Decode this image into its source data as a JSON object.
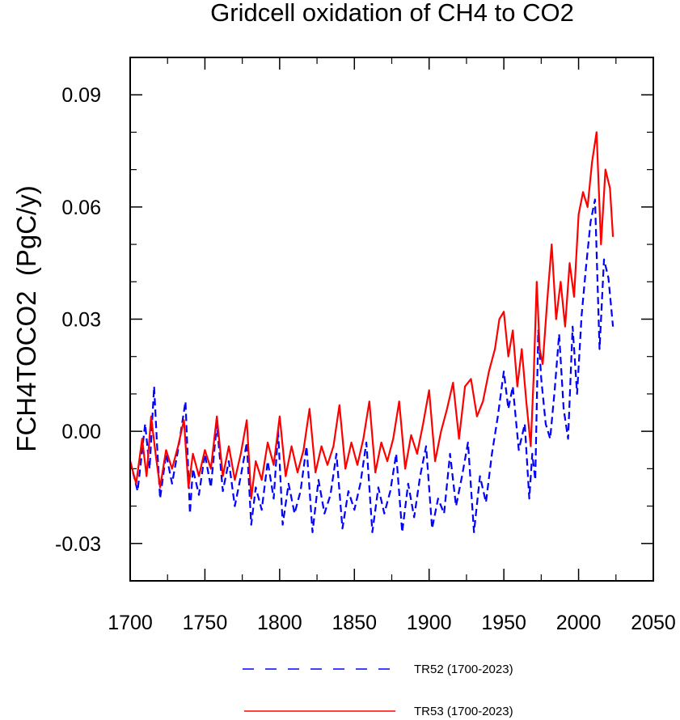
{
  "chart_data": {
    "type": "line",
    "title": "Gridcell oxidation of CH4 to CO2",
    "xlabel": "",
    "ylabel": "FCH4TOCO2  (PgC/y)",
    "xlim": [
      1700,
      2050
    ],
    "ylim": [
      -0.04,
      0.1
    ],
    "xticks": [
      1700,
      1750,
      1800,
      1850,
      1900,
      1950,
      2000,
      2050
    ],
    "xtick_labels": [
      "1700",
      "1750",
      "1800",
      "1850",
      "1900",
      "1950",
      "2000",
      "2050"
    ],
    "yticks": [
      -0.03,
      0.0,
      0.03,
      0.06,
      0.09
    ],
    "ytick_labels": [
      "-0.03",
      "0.00",
      "0.03",
      "0.06",
      "0.09"
    ],
    "legend_position": "bottom",
    "series": [
      {
        "name": "TR52 (1700-2023)",
        "color": "#0000ff",
        "style": "dashed",
        "x": [
          1700,
          1705,
          1710,
          1713,
          1716,
          1718,
          1720,
          1724,
          1728,
          1732,
          1737,
          1740,
          1742,
          1746,
          1750,
          1754,
          1758,
          1762,
          1766,
          1770,
          1774,
          1778,
          1781,
          1784,
          1788,
          1792,
          1796,
          1799,
          1802,
          1806,
          1810,
          1814,
          1818,
          1822,
          1826,
          1830,
          1834,
          1838,
          1842,
          1846,
          1850,
          1854,
          1858,
          1862,
          1866,
          1870,
          1874,
          1878,
          1882,
          1886,
          1890,
          1894,
          1898,
          1902,
          1906,
          1910,
          1914,
          1918,
          1922,
          1926,
          1930,
          1934,
          1938,
          1942,
          1946,
          1950,
          1953,
          1956,
          1960,
          1964,
          1967,
          1969,
          1971,
          1973,
          1975,
          1978,
          1981,
          1984,
          1987,
          1990,
          1993,
          1996,
          1999,
          2002,
          2005,
          2008,
          2011,
          2014,
          2017,
          2020,
          2023
        ],
        "y": [
          -0.008,
          -0.016,
          0.002,
          -0.01,
          0.012,
          -0.004,
          -0.018,
          -0.006,
          -0.014,
          -0.005,
          0.008,
          -0.022,
          -0.01,
          -0.017,
          -0.006,
          -0.015,
          0.002,
          -0.016,
          -0.008,
          -0.02,
          -0.012,
          -0.003,
          -0.025,
          -0.015,
          -0.021,
          -0.008,
          -0.018,
          0.0,
          -0.025,
          -0.014,
          -0.022,
          -0.016,
          -0.004,
          -0.027,
          -0.013,
          -0.022,
          -0.017,
          -0.006,
          -0.026,
          -0.016,
          -0.021,
          -0.014,
          -0.003,
          -0.027,
          -0.015,
          -0.022,
          -0.016,
          -0.006,
          -0.027,
          -0.014,
          -0.023,
          -0.012,
          -0.004,
          -0.026,
          -0.018,
          -0.022,
          -0.006,
          -0.02,
          -0.012,
          -0.003,
          -0.027,
          -0.012,
          -0.019,
          -0.006,
          0.004,
          0.016,
          0.006,
          0.012,
          -0.005,
          0.002,
          -0.018,
          -0.006,
          -0.013,
          0.027,
          0.014,
          0.002,
          -0.002,
          0.011,
          0.026,
          0.006,
          -0.002,
          0.028,
          0.01,
          0.031,
          0.044,
          0.056,
          0.062,
          0.022,
          0.046,
          0.041,
          0.028
        ]
      },
      {
        "name": "TR53 (1700-2023)",
        "color": "#ff0000",
        "style": "solid",
        "x": [
          1700,
          1704,
          1708,
          1711,
          1714,
          1717,
          1720,
          1724,
          1728,
          1732,
          1736,
          1739,
          1742,
          1746,
          1750,
          1754,
          1758,
          1762,
          1766,
          1770,
          1774,
          1778,
          1781,
          1784,
          1788,
          1792,
          1796,
          1800,
          1804,
          1808,
          1812,
          1816,
          1820,
          1824,
          1828,
          1832,
          1836,
          1840,
          1844,
          1848,
          1852,
          1856,
          1860,
          1864,
          1868,
          1872,
          1876,
          1880,
          1884,
          1888,
          1892,
          1896,
          1900,
          1904,
          1908,
          1912,
          1916,
          1920,
          1924,
          1928,
          1932,
          1936,
          1940,
          1944,
          1947,
          1950,
          1953,
          1956,
          1959,
          1962,
          1965,
          1968,
          1970,
          1972,
          1974,
          1976,
          1979,
          1982,
          1985,
          1988,
          1991,
          1994,
          1997,
          2000,
          2003,
          2006,
          2009,
          2012,
          2015,
          2018,
          2021,
          2023
        ],
        "y": [
          -0.008,
          -0.014,
          -0.002,
          -0.012,
          0.004,
          -0.006,
          -0.015,
          -0.005,
          -0.01,
          -0.004,
          0.003,
          -0.015,
          -0.006,
          -0.012,
          -0.005,
          -0.01,
          0.004,
          -0.012,
          -0.004,
          -0.013,
          -0.006,
          0.003,
          -0.018,
          -0.008,
          -0.013,
          -0.003,
          -0.009,
          0.004,
          -0.012,
          -0.004,
          -0.011,
          -0.005,
          0.006,
          -0.011,
          -0.004,
          -0.009,
          -0.004,
          0.007,
          -0.01,
          -0.003,
          -0.009,
          -0.002,
          0.008,
          -0.011,
          -0.003,
          -0.008,
          -0.002,
          0.008,
          -0.01,
          -0.001,
          -0.006,
          0.002,
          0.011,
          -0.008,
          0.0,
          0.006,
          0.013,
          -0.002,
          0.012,
          0.014,
          0.004,
          0.008,
          0.016,
          0.022,
          0.03,
          0.032,
          0.02,
          0.027,
          0.012,
          0.022,
          0.008,
          -0.004,
          0.015,
          0.04,
          0.022,
          0.018,
          0.035,
          0.05,
          0.03,
          0.04,
          0.028,
          0.045,
          0.036,
          0.058,
          0.064,
          0.06,
          0.072,
          0.08,
          0.05,
          0.07,
          0.065,
          0.052
        ]
      }
    ]
  }
}
